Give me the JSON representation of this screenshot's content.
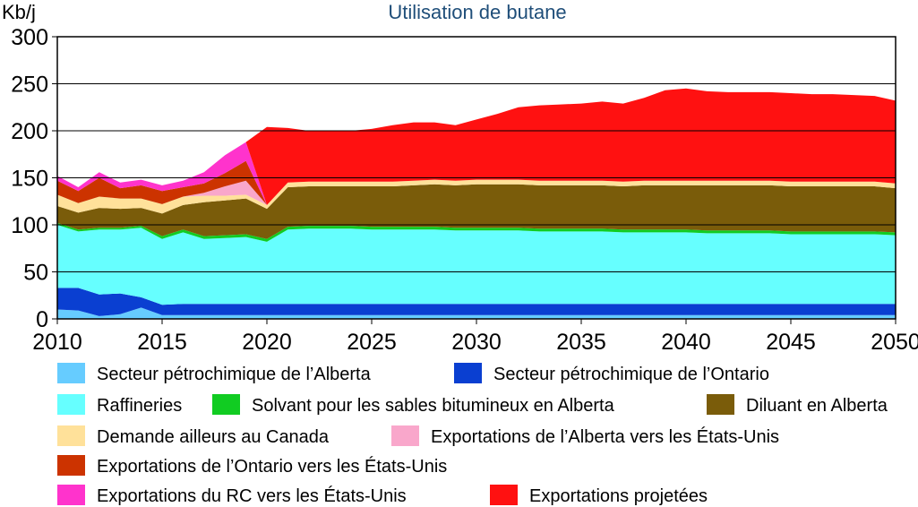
{
  "chart_data": {
    "type": "area",
    "stacked": true,
    "title": "Utilisation de butane",
    "ylabel": "Kb/j",
    "xlim": [
      2010,
      2050
    ],
    "ylim": [
      0,
      300
    ],
    "xticks": [
      2010,
      2015,
      2020,
      2025,
      2030,
      2035,
      2040,
      2045,
      2050
    ],
    "yticks": [
      0,
      50,
      100,
      150,
      200,
      250,
      300
    ],
    "grid": "horizontal",
    "legend_position": "bottom",
    "x": [
      2010,
      2011,
      2012,
      2013,
      2014,
      2015,
      2016,
      2017,
      2018,
      2019,
      2020,
      2021,
      2022,
      2023,
      2024,
      2025,
      2026,
      2027,
      2028,
      2029,
      2030,
      2031,
      2032,
      2033,
      2034,
      2035,
      2036,
      2037,
      2038,
      2039,
      2040,
      2041,
      2042,
      2043,
      2044,
      2045,
      2046,
      2047,
      2048,
      2049,
      2050
    ],
    "series": [
      {
        "name": "Secteur pétrochimique de l’Alberta",
        "color": "#66ccff",
        "values": [
          10,
          9,
          3,
          5,
          12,
          4,
          4,
          4,
          4,
          4,
          4,
          4,
          4,
          4,
          4,
          4,
          4,
          4,
          4,
          4,
          4,
          4,
          4,
          4,
          4,
          4,
          4,
          4,
          4,
          4,
          4,
          4,
          4,
          4,
          4,
          4,
          4,
          4,
          4,
          4,
          4
        ]
      },
      {
        "name": "Secteur pétrochimique de l’Ontario",
        "color": "#0a3fd1",
        "values": [
          23,
          24,
          23,
          22,
          11,
          11,
          12,
          12,
          12,
          12,
          12,
          12,
          12,
          12,
          12,
          12,
          12,
          12,
          12,
          12,
          12,
          12,
          12,
          12,
          12,
          12,
          12,
          12,
          12,
          12,
          12,
          12,
          12,
          12,
          12,
          12,
          12,
          12,
          12,
          12,
          12
        ]
      },
      {
        "name": "Raffineries",
        "color": "#66ffff",
        "values": [
          67,
          60,
          69,
          68,
          74,
          70,
          76,
          69,
          70,
          71,
          66,
          79,
          80,
          80,
          80,
          79,
          79,
          79,
          79,
          78,
          78,
          78,
          78,
          77,
          77,
          77,
          77,
          76,
          76,
          76,
          76,
          75,
          75,
          75,
          75,
          74,
          74,
          74,
          74,
          74,
          73
        ]
      },
      {
        "name": "Solvant pour les sables bitumineux en Alberta",
        "color": "#11cc22",
        "values": [
          2,
          2,
          2,
          2,
          2,
          3,
          3,
          3,
          3,
          3,
          3,
          3,
          3,
          3,
          3,
          3,
          3,
          3,
          3,
          3,
          3,
          3,
          3,
          3,
          3,
          3,
          3,
          3,
          3,
          3,
          3,
          3,
          3,
          3,
          3,
          3,
          3,
          3,
          3,
          3,
          3
        ]
      },
      {
        "name": "Diluant en Alberta",
        "color": "#7a5c0a",
        "values": [
          18,
          18,
          21,
          20,
          19,
          24,
          26,
          36,
          37,
          38,
          32,
          42,
          42,
          42,
          42,
          43,
          43,
          44,
          45,
          45,
          46,
          46,
          46,
          46,
          46,
          46,
          46,
          46,
          47,
          47,
          47,
          48,
          48,
          48,
          48,
          48,
          48,
          48,
          48,
          48,
          47
        ]
      },
      {
        "name": "Demande ailleurs au Canada",
        "color": "#ffe19a",
        "values": [
          12,
          10,
          12,
          11,
          10,
          10,
          9,
          7,
          5,
          4,
          4,
          5,
          5,
          5,
          5,
          5,
          5,
          5,
          5,
          5,
          5,
          5,
          5,
          5,
          5,
          5,
          5,
          5,
          5,
          5,
          5,
          5,
          5,
          5,
          5,
          5,
          5,
          5,
          5,
          5,
          5
        ]
      },
      {
        "name": "Exportations de l’Alberta vers les États-Unis",
        "color": "#f9a7cb",
        "values": [
          0,
          0,
          0,
          0,
          0,
          0,
          0,
          3,
          10,
          15,
          0,
          0,
          0,
          0,
          0,
          0,
          0,
          0,
          0,
          0,
          0,
          0,
          0,
          0,
          0,
          0,
          0,
          0,
          0,
          0,
          0,
          0,
          0,
          0,
          0,
          0,
          0,
          0,
          0,
          0,
          0
        ]
      },
      {
        "name": "Exportations de l’Ontario vers les États-Unis",
        "color": "#cc3300",
        "values": [
          15,
          13,
          20,
          11,
          14,
          14,
          10,
          10,
          14,
          21,
          0,
          0,
          0,
          0,
          0,
          0,
          0,
          0,
          0,
          0,
          0,
          0,
          0,
          0,
          0,
          0,
          0,
          0,
          0,
          0,
          0,
          0,
          0,
          0,
          0,
          0,
          0,
          0,
          0,
          0,
          0
        ]
      },
      {
        "name": "Exportations du RC vers les États-Unis",
        "color": "#ff33cc",
        "values": [
          5,
          4,
          6,
          6,
          6,
          6,
          7,
          12,
          19,
          20,
          0,
          0,
          0,
          0,
          0,
          0,
          0,
          0,
          0,
          0,
          0,
          0,
          0,
          0,
          0,
          0,
          0,
          0,
          0,
          0,
          0,
          0,
          0,
          0,
          0,
          0,
          0,
          0,
          0,
          0,
          0
        ]
      },
      {
        "name": "Exportations projetées",
        "color": "#ff1111",
        "values": [
          0,
          0,
          0,
          0,
          0,
          0,
          0,
          0,
          0,
          0,
          83,
          58,
          54,
          54,
          54,
          56,
          60,
          62,
          61,
          59,
          64,
          70,
          77,
          80,
          81,
          82,
          84,
          83,
          88,
          96,
          98,
          95,
          94,
          94,
          94,
          94,
          93,
          93,
          92,
          91,
          88
        ]
      }
    ]
  }
}
